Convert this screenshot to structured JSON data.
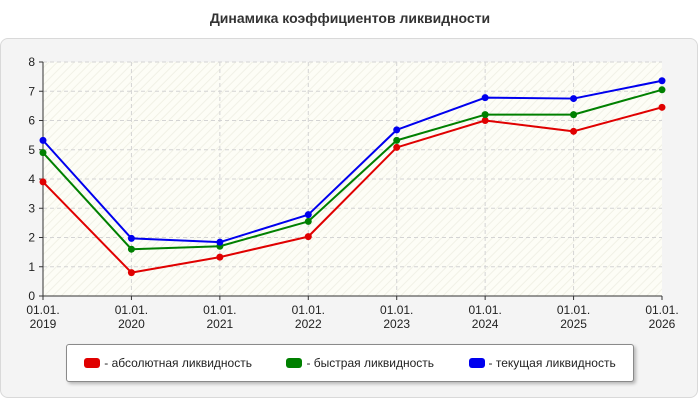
{
  "chart_data": {
    "type": "line",
    "title": "Динамика коэффициентов ликвидности",
    "categories": [
      [
        "01.01.",
        "2019"
      ],
      [
        "01.01.",
        "2020"
      ],
      [
        "01.01.",
        "2021"
      ],
      [
        "01.01.",
        "2022"
      ],
      [
        "01.01.",
        "2023"
      ],
      [
        "01.01.",
        "2024"
      ],
      [
        "01.01.",
        "2025"
      ],
      [
        "01.01.",
        "2026"
      ]
    ],
    "ylim": [
      0,
      8
    ],
    "yticks": [
      0,
      1,
      2,
      3,
      4,
      5,
      6,
      7,
      8
    ],
    "grid": true,
    "legend_position": "bottom",
    "series": [
      {
        "name": "- абсолютная ликвидность",
        "color": "#e00000",
        "values": [
          3.9,
          0.8,
          1.33,
          2.03,
          5.08,
          6.0,
          5.63,
          6.45
        ]
      },
      {
        "name": "- быстрая ликвидность",
        "color": "#008000",
        "values": [
          4.9,
          1.6,
          1.7,
          2.55,
          5.32,
          6.2,
          6.2,
          7.05
        ]
      },
      {
        "name": "- текущая ликвидность",
        "color": "#0000ee",
        "values": [
          5.32,
          1.97,
          1.84,
          2.78,
          5.68,
          6.78,
          6.75,
          7.36
        ]
      }
    ]
  }
}
